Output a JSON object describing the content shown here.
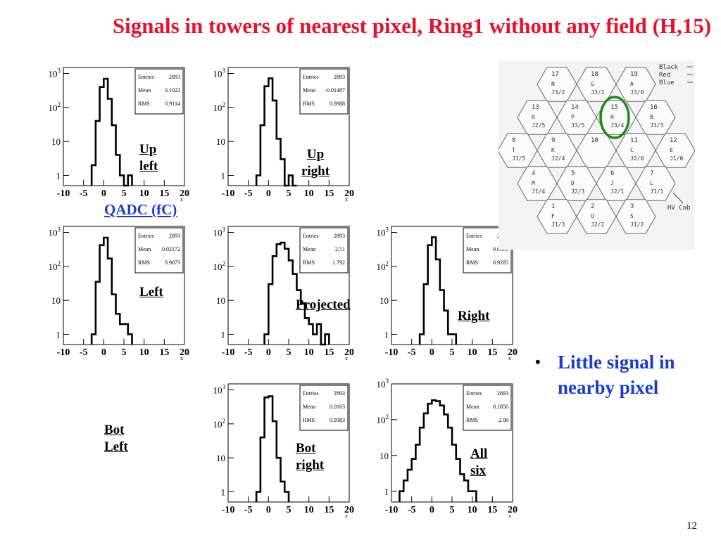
{
  "title": "Signals in towers of nearest pixel, Ring1 without any field  (H,15)",
  "axis": {
    "x_ticks": [
      "-10",
      "-5",
      "0",
      "5",
      "10",
      "15",
      "20"
    ],
    "y_ticks": [
      "1",
      "10",
      "10²",
      "10³"
    ],
    "x_unit_mark": "x"
  },
  "stats_labels": {
    "entries": "Entries",
    "mean": "Mean",
    "rms": "RMS"
  },
  "plots": [
    {
      "id": "up-left",
      "label": "Up left",
      "entries": "2893",
      "mean": "0.1022",
      "rms": "0.9114"
    },
    {
      "id": "up-right",
      "label": "Up right",
      "entries": "2893",
      "mean": "-0.01487",
      "rms": "0.8988"
    },
    {
      "id": "left",
      "label": "Left",
      "entries": "2893",
      "mean": "0.02172",
      "rms": "0.9073"
    },
    {
      "id": "projected",
      "label": "Projected",
      "entries": "2893",
      "mean": "2.51",
      "rms": "1.792"
    },
    {
      "id": "right",
      "label": "Right",
      "entries": "2893",
      "mean": "0.0661",
      "rms": "0.9285"
    },
    {
      "id": "bot-left",
      "label": "Bot Left"
    },
    {
      "id": "bot-right",
      "label": "Bot right",
      "entries": "2893",
      "mean": "0.0163",
      "rms": "0.9383"
    },
    {
      "id": "all-six",
      "label": "All six",
      "entries": "2893",
      "mean": "0.1856",
      "rms": "2.06"
    }
  ],
  "qadc_label": "QADC (fC)",
  "bullet": "Little signal in nearby pixel",
  "page_number": "12",
  "legend_colors": [
    "Black",
    "Red",
    "Blue"
  ],
  "hv_label": "HV Cab",
  "highlight_color": "#1a8a1a",
  "pixels": [
    {
      "num": "17",
      "name": "N",
      "conn": "J3/2"
    },
    {
      "num": "18",
      "name": "G",
      "conn": "J3/1"
    },
    {
      "num": "19",
      "name": "A",
      "conn": "J3/0"
    },
    {
      "num": "13",
      "name": "R",
      "conn": "J2/5"
    },
    {
      "num": "14",
      "name": "P",
      "conn": "J3/5"
    },
    {
      "num": "15",
      "name": "H",
      "conn": "J3/4"
    },
    {
      "num": "16",
      "name": "B",
      "conn": "J3/3"
    },
    {
      "num": "8",
      "name": "T",
      "conn": "J1/5"
    },
    {
      "num": "9",
      "name": "K",
      "conn": "J2/4"
    },
    {
      "num": "10",
      "name": "",
      "conn": ""
    },
    {
      "num": "11",
      "name": "C",
      "conn": "J2/0"
    },
    {
      "num": "12",
      "name": "E",
      "conn": "J1/0"
    },
    {
      "num": "4",
      "name": "M",
      "conn": "J1/4"
    },
    {
      "num": "5",
      "name": "D",
      "conn": "J2/3"
    },
    {
      "num": "6",
      "name": "J",
      "conn": "J2/1"
    },
    {
      "num": "7",
      "name": "L",
      "conn": "J1/1"
    },
    {
      "num": "1",
      "name": "F",
      "conn": "J1/3"
    },
    {
      "num": "2",
      "name": "Q",
      "conn": "J2/2"
    },
    {
      "num": "3",
      "name": "S",
      "conn": "J1/2"
    }
  ],
  "chart_data": [
    {
      "type": "histogram",
      "name": "Up left",
      "x": [
        -2.5,
        -1.5,
        -0.5,
        0.5,
        1.5,
        2.5,
        3.5,
        4.5,
        5.5,
        6.5
      ],
      "values": [
        2,
        40,
        400,
        700,
        180,
        30,
        4,
        1,
        0,
        1
      ],
      "yscale": "log",
      "xlim": [
        -10,
        20
      ],
      "ylim": [
        0.5,
        1500
      ]
    },
    {
      "type": "histogram",
      "name": "Up right",
      "x": [
        -2.5,
        -1.5,
        -0.5,
        0.5,
        1.5,
        2.5,
        3.5,
        4.5,
        5.5,
        6.5
      ],
      "values": [
        1,
        30,
        420,
        720,
        160,
        12,
        3,
        0,
        1,
        0
      ],
      "yscale": "log",
      "xlim": [
        -10,
        20
      ],
      "ylim": [
        0.5,
        1500
      ]
    },
    {
      "type": "histogram",
      "name": "Left",
      "x": [
        -2.5,
        -1.5,
        -0.5,
        0.5,
        1.5,
        2.5,
        3.5,
        4.5,
        5.5,
        6.5
      ],
      "values": [
        1,
        35,
        420,
        700,
        170,
        15,
        4,
        2,
        2,
        1
      ],
      "yscale": "log",
      "xlim": [
        -10,
        20
      ],
      "ylim": [
        0.5,
        1500
      ]
    },
    {
      "type": "histogram",
      "name": "Projected",
      "x": [
        -0.5,
        0.5,
        1.5,
        2.5,
        3.5,
        4.5,
        5.5,
        6.5,
        7.5,
        8.5,
        9.5,
        10.5,
        11.5,
        12.5,
        13.5,
        14.5
      ],
      "values": [
        1,
        30,
        200,
        450,
        500,
        330,
        150,
        60,
        20,
        8,
        3,
        2,
        1,
        2,
        0,
        1
      ],
      "yscale": "log",
      "xlim": [
        -10,
        20
      ],
      "ylim": [
        0.5,
        1500
      ]
    },
    {
      "type": "histogram",
      "name": "Right",
      "x": [
        -2.5,
        -1.5,
        -0.5,
        0.5,
        1.5,
        2.5,
        3.5,
        4.5,
        5.5
      ],
      "values": [
        1,
        30,
        420,
        720,
        160,
        20,
        5,
        1,
        1
      ],
      "yscale": "log",
      "xlim": [
        -10,
        20
      ],
      "ylim": [
        0.5,
        1500
      ]
    },
    {
      "type": "histogram",
      "name": "Bot right",
      "x": [
        -2.5,
        -1.5,
        -0.5,
        0.5,
        1.5,
        2.5,
        3.5,
        4.5
      ],
      "values": [
        1,
        40,
        600,
        650,
        120,
        10,
        2,
        1
      ],
      "yscale": "log",
      "xlim": [
        -10,
        20
      ],
      "ylim": [
        0.5,
        1500
      ]
    },
    {
      "type": "histogram",
      "name": "All six",
      "x": [
        -7.5,
        -6.5,
        -5.5,
        -4.5,
        -3.5,
        -2.5,
        -1.5,
        -0.5,
        0.5,
        1.5,
        2.5,
        3.5,
        4.5,
        5.5,
        6.5,
        7.5,
        8.5,
        9.5,
        10.5
      ],
      "values": [
        1,
        2,
        4,
        8,
        20,
        60,
        150,
        280,
        350,
        330,
        250,
        140,
        60,
        20,
        8,
        3,
        2,
        1,
        1
      ],
      "yscale": "log",
      "xlim": [
        -10,
        20
      ],
      "ylim": [
        0.5,
        1000
      ]
    }
  ]
}
